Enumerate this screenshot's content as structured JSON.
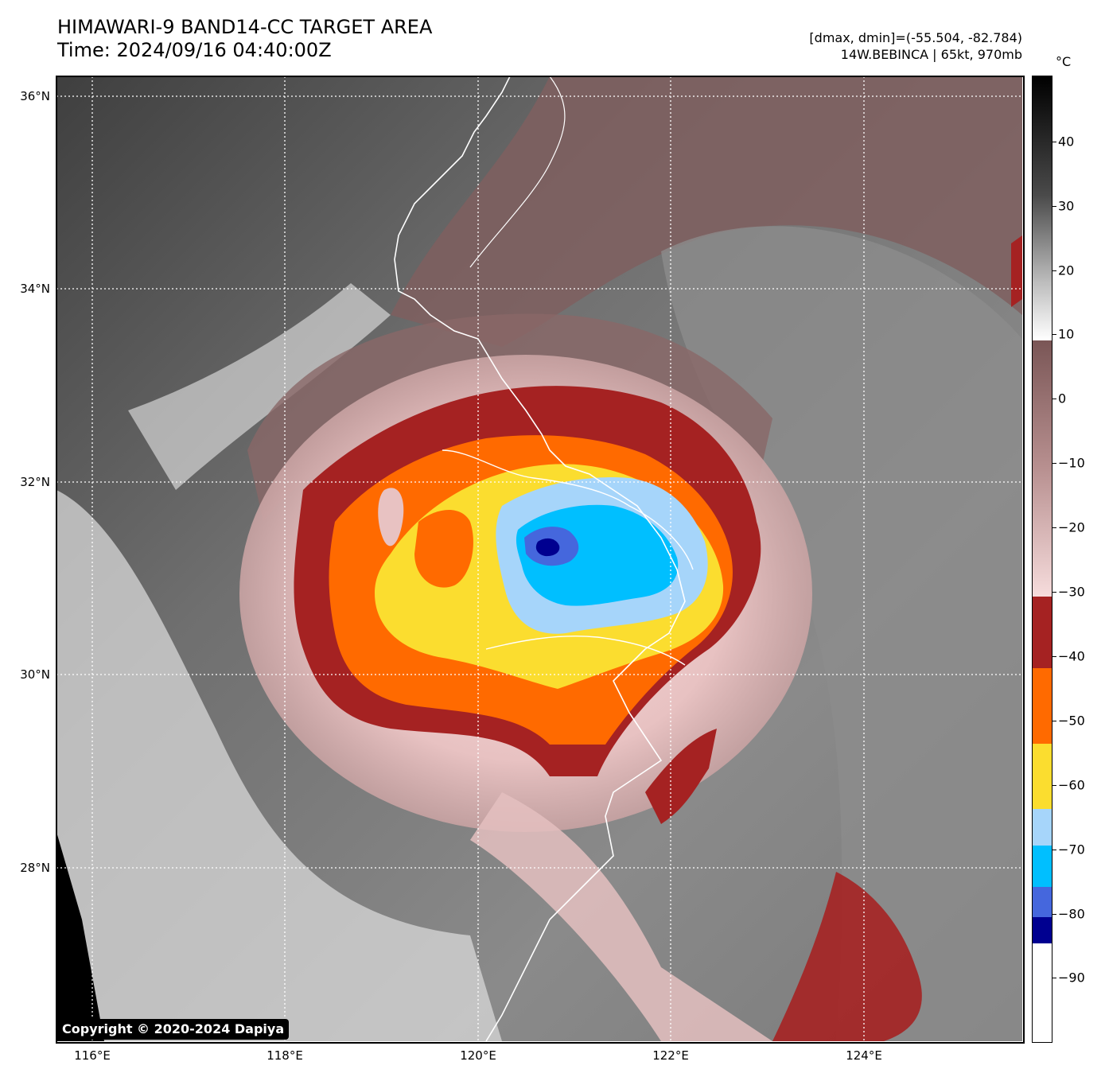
{
  "header": {
    "title_line1": "HIMAWARI-9 BAND14-CC TARGET AREA",
    "title_line2": "Time: 2024/09/16 04:40:00Z",
    "stats_line": "[dmax, dmin]=(-55.504, -82.784)",
    "storm_line": "14W.BEBINCA | 65kt, 970mb"
  },
  "map": {
    "lat_labels": [
      "36°N",
      "34°N",
      "32°N",
      "30°N",
      "28°N"
    ],
    "lon_labels": [
      "116°E",
      "118°E",
      "120°E",
      "122°E",
      "124°E"
    ],
    "copyright": "Copyright © 2020-2024 Dapiya"
  },
  "colorbar": {
    "unit": "°C",
    "labels": [
      "40",
      "30",
      "20",
      "10",
      "0",
      "−10",
      "−20",
      "−30",
      "−40",
      "−50",
      "−60",
      "−70",
      "−80",
      "−90"
    ],
    "colors": {
      "band_-40_-30": "#a52222",
      "band_-50_-40": "#ff6a00",
      "band_-60_-50": "#fbdd2f",
      "band_-70_-60": "#a6d5fa",
      "band_-80_-70": "#00bfff",
      "band_-85_-80": "#4567dd",
      "band_-90_-85": "#000090",
      "below_-90": "#ffffff"
    }
  }
}
